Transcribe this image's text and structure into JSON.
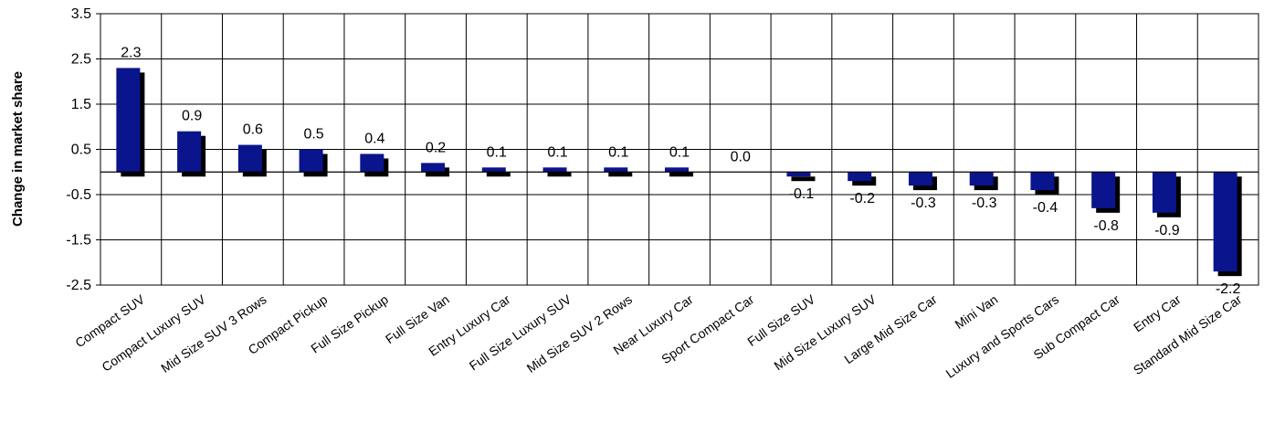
{
  "chart_data": {
    "type": "bar",
    "xlabel": "",
    "ylabel": "Change in market share",
    "ylim": [
      -2.5,
      3.5
    ],
    "yticks": [
      "3.5",
      "2.5",
      "1.5",
      "0.5",
      "-0.5",
      "-1.5",
      "-2.5"
    ],
    "grid": true,
    "categories": [
      "Compact SUV",
      "Compact Luxury SUV",
      "Mid Size SUV 3 Rows",
      "Compact Pickup",
      "Full Size Pickup",
      "Full Size Van",
      "Entry Luxury Car",
      "Full Size Luxury SUV",
      "Mid Size SUV 2 Rows",
      "Near Luxury Car",
      "Sport Compact Car",
      "Full Size SUV",
      "Mid Size Luxury SUV",
      "Large Mid Size Car",
      "Mini Van",
      "Luxury and Sports Cars",
      "Sub Compact Car",
      "Entry Car",
      "Standard Mid Size Car"
    ],
    "values": [
      2.3,
      0.9,
      0.6,
      0.5,
      0.4,
      0.2,
      0.1,
      0.1,
      0.1,
      0.1,
      0.0,
      -0.1,
      -0.2,
      -0.3,
      -0.3,
      -0.4,
      -0.8,
      -0.9,
      -2.2
    ],
    "data_labels": [
      "2.3",
      "0.9",
      "0.6",
      "0.5",
      "0.4",
      "0.2",
      "0.1",
      "0.1",
      "0.1",
      "0.1",
      "0.0",
      "-0.1",
      "-0.2",
      "-0.3",
      "-0.3",
      "-0.4",
      "-0.8",
      "-0.9",
      "-2.2"
    ],
    "colors": {
      "bar": "#0a148c",
      "shadow": "#000000",
      "grid": "#000000"
    }
  }
}
